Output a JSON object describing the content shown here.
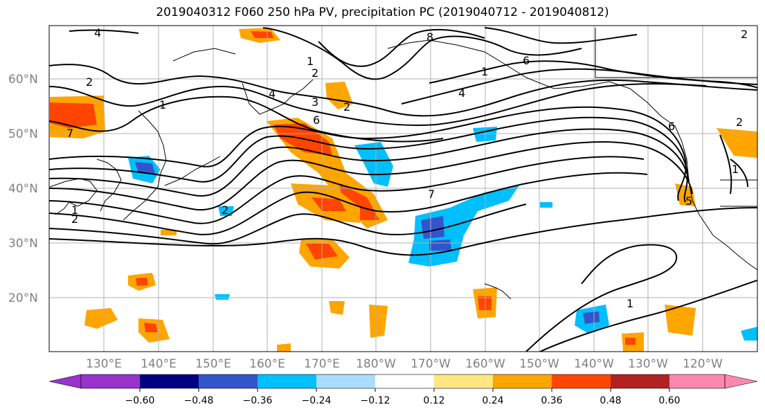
{
  "title": "2019040312 F060 250 hPa PV, precipitation PC (2019040712 - 2019040812)",
  "map": {
    "lon_labels": [
      "130°E",
      "140°E",
      "150°E",
      "160°E",
      "170°E",
      "180°W",
      "170°W",
      "160°W",
      "150°W",
      "140°W",
      "130°W",
      "120°W"
    ],
    "lat_labels": [
      "20°N",
      "30°N",
      "40°N",
      "50°N",
      "60°N"
    ],
    "contour_labels": [
      "4",
      "2",
      "1",
      "2",
      "1",
      "4",
      "3",
      "6",
      "2",
      "8",
      "6",
      "1",
      "4",
      "7",
      "1",
      "2",
      "7",
      "5",
      "2",
      "1",
      "2",
      "6",
      "1",
      "2"
    ]
  },
  "colorbar": {
    "colors": [
      "#9933cc",
      "#000080",
      "#3355cc",
      "#00bfff",
      "#aadcff",
      "#ffffff",
      "#ffe680",
      "#ffa500",
      "#ff4500",
      "#b22222",
      "#ff88b0"
    ],
    "labels": [
      "−0.60",
      "−0.48",
      "−0.36",
      "−0.24",
      "−0.12",
      "0.12",
      "0.24",
      "0.36",
      "0.48",
      "0.60"
    ]
  },
  "colors": {
    "grid": "#b0b0b0",
    "contour": "#000000",
    "tick_label": "#808080"
  }
}
